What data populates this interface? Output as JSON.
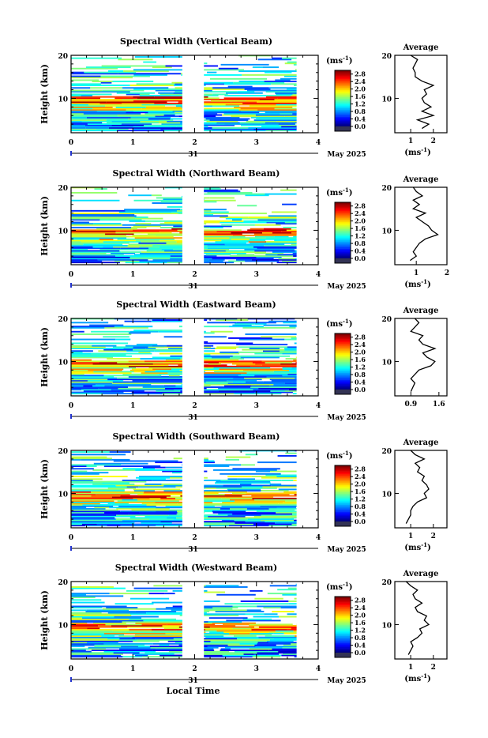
{
  "figure": {
    "x_axis_title": "Local Time",
    "y_axis_title": "Height (km)",
    "cb_unit": "(ms",
    "cb_unit_sup": "-1",
    "date_label": "May 2025",
    "day_label": "31",
    "avg_title": "Average"
  },
  "chart_data": [
    {
      "type": "heatmap",
      "title": "Spectral Width (Vertical Beam)",
      "xlabel": "",
      "ylabel": "Height (km)",
      "xlim": [
        0,
        4
      ],
      "ylim": [
        2,
        20
      ],
      "xticks": [
        "0",
        "1",
        "2",
        "3",
        "4"
      ],
      "yticks": [
        "10",
        "20"
      ],
      "data_gap_local_time": [
        1.8,
        2.15
      ],
      "data_end_local_time": 3.65,
      "colorbar": {
        "unit": "(ms-1)",
        "ticks": [
          "0.0",
          "0.4",
          "0.8",
          "1.2",
          "1.6",
          "2.0",
          "2.4",
          "2.8"
        ],
        "range": [
          0,
          3.0
        ]
      },
      "average_profile": {
        "title": "Average",
        "xlabel": "(ms-1)",
        "xticks": [
          "1",
          "2"
        ],
        "xlim": [
          0.3,
          2.6
        ],
        "heights": [
          3,
          4,
          5,
          6,
          7,
          8,
          9,
          10,
          11,
          12,
          13,
          14,
          15,
          16,
          17,
          18,
          19,
          20
        ],
        "values": [
          1.5,
          1.8,
          1.3,
          2.0,
          1.5,
          1.9,
          1.6,
          1.5,
          1.7,
          1.6,
          2.0,
          1.5,
          1.2,
          1.2,
          1.1,
          1.2,
          1.3,
          1.0
        ]
      }
    },
    {
      "type": "heatmap",
      "title": "Spectral Width (Northward Beam)",
      "xlabel": "",
      "ylabel": "Height (km)",
      "xlim": [
        0,
        4
      ],
      "ylim": [
        2,
        20
      ],
      "xticks": [
        "0",
        "1",
        "2",
        "3",
        "4"
      ],
      "yticks": [
        "10",
        "20"
      ],
      "data_gap_local_time": [
        1.8,
        2.15
      ],
      "data_end_local_time": 3.65,
      "colorbar": {
        "unit": "(ms-1)",
        "ticks": [
          "0.0",
          "0.4",
          "0.8",
          "1.2",
          "1.6",
          "2.0",
          "2.4",
          "2.8"
        ],
        "range": [
          0,
          3.0
        ]
      },
      "average_profile": {
        "title": "Average",
        "xlabel": "(ms-1)",
        "xticks": [
          "1",
          "2"
        ],
        "xlim": [
          0.3,
          2.0
        ],
        "heights": [
          3,
          4,
          5,
          6,
          7,
          8,
          9,
          10,
          11,
          12,
          13,
          14,
          15,
          16,
          17,
          18,
          19,
          20
        ],
        "values": [
          0.8,
          1.0,
          0.9,
          1.0,
          1.1,
          1.3,
          1.7,
          1.5,
          1.4,
          1.2,
          1.0,
          1.3,
          0.9,
          1.1,
          0.9,
          1.2,
          1.0,
          0.9
        ]
      }
    },
    {
      "type": "heatmap",
      "title": "Spectral Width (Eastward Beam)",
      "xlabel": "",
      "ylabel": "Height (km)",
      "xlim": [
        0,
        4
      ],
      "ylim": [
        2,
        20
      ],
      "xticks": [
        "0",
        "1",
        "2",
        "3",
        "4"
      ],
      "yticks": [
        "10",
        "20"
      ],
      "data_gap_local_time": [
        1.8,
        2.15
      ],
      "data_end_local_time": 3.65,
      "colorbar": {
        "unit": "(ms-1)",
        "ticks": [
          "0.0",
          "0.4",
          "0.8",
          "1.2",
          "1.6",
          "2.0",
          "2.4",
          "2.8"
        ],
        "range": [
          0,
          3.0
        ]
      },
      "average_profile": {
        "title": "Average",
        "xlabel": "",
        "xticks": [
          "0.9",
          "1.6"
        ],
        "xlim": [
          0.5,
          1.8
        ],
        "heights": [
          3,
          4,
          5,
          6,
          7,
          8,
          9,
          10,
          11,
          12,
          13,
          14,
          15,
          16,
          17,
          18,
          19,
          20
        ],
        "values": [
          0.9,
          0.95,
          1.0,
          0.9,
          1.0,
          1.1,
          1.4,
          1.5,
          1.3,
          1.2,
          1.5,
          1.2,
          1.1,
          1.2,
          0.9,
          1.0,
          1.1,
          1.0
        ]
      }
    },
    {
      "type": "heatmap",
      "title": "Spectral Width (Southward Beam)",
      "xlabel": "",
      "ylabel": "Height (km)",
      "xlim": [
        0,
        4
      ],
      "ylim": [
        2,
        20
      ],
      "xticks": [
        "0",
        "1",
        "2",
        "3",
        "4"
      ],
      "yticks": [
        "10",
        "20"
      ],
      "data_gap_local_time": [
        1.8,
        2.15
      ],
      "data_end_local_time": 3.65,
      "colorbar": {
        "unit": "(ms-1)",
        "ticks": [
          "0.0",
          "0.4",
          "0.8",
          "1.2",
          "1.6",
          "2.0",
          "2.4",
          "2.8"
        ],
        "range": [
          0,
          3.0
        ]
      },
      "average_profile": {
        "title": "Average",
        "xlabel": "(ms-1)",
        "xticks": [
          "1",
          "2"
        ],
        "xlim": [
          0.3,
          2.6
        ],
        "heights": [
          3,
          4,
          5,
          6,
          7,
          8,
          9,
          10,
          11,
          12,
          13,
          14,
          15,
          16,
          17,
          18,
          19,
          20
        ],
        "values": [
          0.8,
          0.9,
          1.0,
          1.0,
          1.1,
          1.3,
          1.7,
          1.6,
          1.8,
          1.7,
          1.5,
          1.6,
          1.3,
          1.4,
          1.2,
          1.6,
          1.2,
          1.0
        ]
      }
    },
    {
      "type": "heatmap",
      "title": "Spectral Width (Westward Beam)",
      "xlabel": "Local Time",
      "ylabel": "Height (km)",
      "xlim": [
        0,
        4
      ],
      "ylim": [
        2,
        20
      ],
      "xticks": [
        "0",
        "1",
        "2",
        "3",
        "4"
      ],
      "yticks": [
        "10",
        "20"
      ],
      "data_gap_local_time": [
        1.8,
        2.15
      ],
      "data_end_local_time": 3.65,
      "colorbar": {
        "unit": "(ms-1)",
        "ticks": [
          "0.0",
          "0.4",
          "0.8",
          "1.2",
          "1.6",
          "2.0",
          "2.4",
          "2.8"
        ],
        "range": [
          0,
          3.0
        ]
      },
      "average_profile": {
        "title": "Average",
        "xlabel": "(ms-1)",
        "xticks": [
          "1",
          "2"
        ],
        "xlim": [
          0.3,
          2.6
        ],
        "heights": [
          3,
          4,
          5,
          6,
          7,
          8,
          9,
          10,
          11,
          12,
          13,
          14,
          15,
          16,
          17,
          18,
          19,
          20
        ],
        "values": [
          0.9,
          1.0,
          1.1,
          1.0,
          1.3,
          1.5,
          1.4,
          1.8,
          1.6,
          1.7,
          1.3,
          1.2,
          1.5,
          1.2,
          1.1,
          1.3,
          1.0,
          0.8
        ]
      }
    }
  ]
}
